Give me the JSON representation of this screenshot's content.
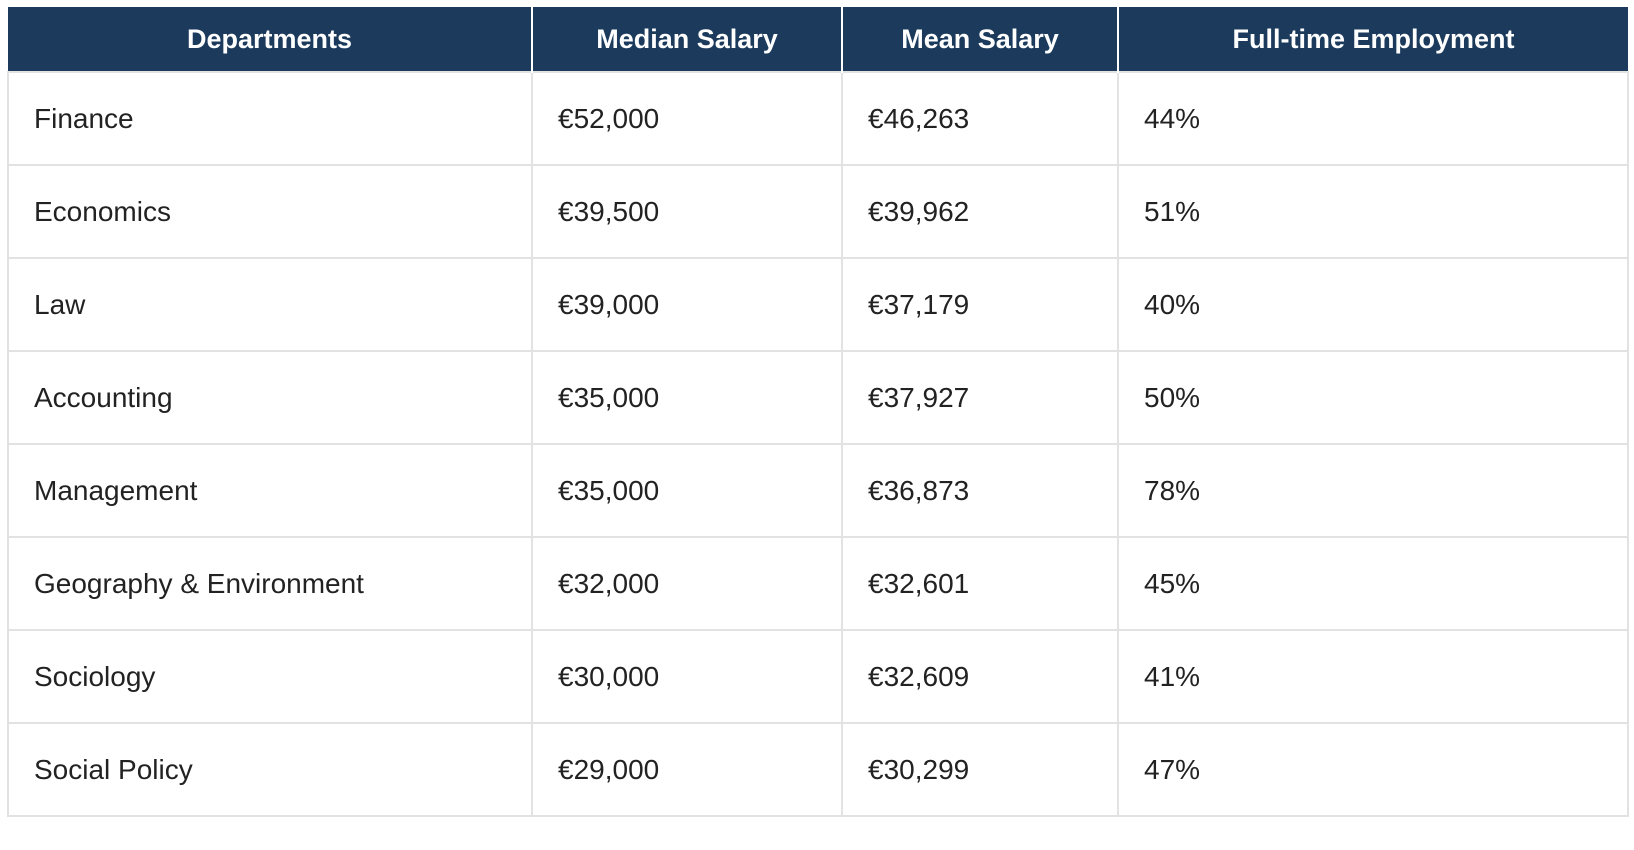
{
  "chart_data": {
    "type": "table",
    "columns": [
      "Departments",
      "Median Salary",
      "Mean Salary",
      "Full-time Employment"
    ],
    "rows": [
      [
        "Finance",
        "€52,000",
        "€46,263",
        "44%"
      ],
      [
        "Economics",
        "€39,500",
        "€39,962",
        "51%"
      ],
      [
        "Law",
        "€39,000",
        "€37,179",
        "40%"
      ],
      [
        "Accounting",
        "€35,000",
        "€37,927",
        "50%"
      ],
      [
        "Management",
        "€35,000",
        "€36,873",
        "78%"
      ],
      [
        "Geography & Environment",
        "€32,000",
        "€32,601",
        "45%"
      ],
      [
        "Sociology",
        "€30,000",
        "€32,609",
        "41%"
      ],
      [
        "Social Policy",
        "€29,000",
        "€30,299",
        "47%"
      ]
    ]
  },
  "colors": {
    "header_background": "#1b3a5c",
    "header_text": "#ffffff",
    "grid_line": "#e2e2e2",
    "cell_text": "#222222"
  }
}
